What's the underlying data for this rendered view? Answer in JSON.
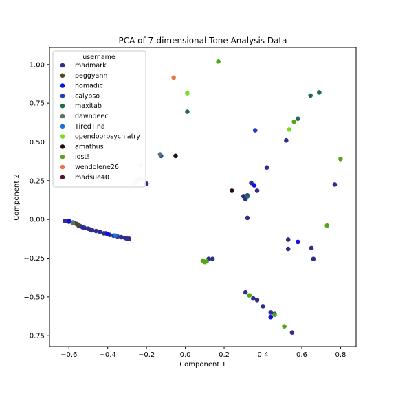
{
  "chart_data": {
    "type": "scatter",
    "title": "PCA of 7-dimensional Tone Analysis Data",
    "xlabel": "Component 1",
    "ylabel": "Component 2",
    "xlim": [
      -0.7,
      0.88
    ],
    "ylim": [
      -0.82,
      1.11
    ],
    "xticks": [
      -0.6,
      -0.4,
      -0.2,
      0.0,
      0.2,
      0.4,
      0.6,
      0.8
    ],
    "xtick_labels": [
      "−0.6",
      "−0.4",
      "−0.2",
      "0.0",
      "0.2",
      "0.4",
      "0.6",
      "0.8"
    ],
    "yticks": [
      -0.75,
      -0.5,
      -0.25,
      0.0,
      0.25,
      0.5,
      0.75,
      1.0
    ],
    "ytick_labels": [
      "−0.75",
      "−0.50",
      "−0.25",
      "0.00",
      "0.25",
      "0.50",
      "0.75",
      "1.00"
    ],
    "grid": false,
    "legend": {
      "title": "username",
      "placement": "top-left"
    },
    "series": [
      {
        "name": "madmark",
        "color": "#2e2e8c",
        "points": [
          [
            -0.62,
            -0.01
          ],
          [
            -0.6,
            -0.015
          ],
          [
            -0.58,
            -0.02
          ],
          [
            -0.56,
            -0.03
          ],
          [
            -0.55,
            -0.04
          ],
          [
            -0.54,
            -0.045
          ],
          [
            -0.53,
            -0.05
          ],
          [
            -0.52,
            -0.055
          ],
          [
            -0.5,
            -0.06
          ],
          [
            -0.49,
            -0.065
          ],
          [
            -0.48,
            -0.07
          ],
          [
            -0.46,
            -0.075
          ],
          [
            -0.44,
            -0.08
          ],
          [
            -0.42,
            -0.09
          ],
          [
            -0.41,
            -0.09
          ],
          [
            -0.39,
            -0.1
          ],
          [
            -0.37,
            -0.105
          ],
          [
            -0.35,
            -0.11
          ],
          [
            -0.33,
            -0.115
          ],
          [
            -0.31,
            -0.12
          ],
          [
            -0.3,
            -0.125
          ],
          [
            -0.29,
            -0.125
          ],
          [
            -0.41,
            0.275
          ],
          [
            -0.2,
            0.23
          ],
          [
            0.12,
            -0.255
          ],
          [
            0.14,
            -0.255
          ],
          [
            0.3,
            0.15
          ],
          [
            0.31,
            0.13
          ],
          [
            0.32,
            0.155
          ],
          [
            0.34,
            0.235
          ],
          [
            0.37,
            0.185
          ],
          [
            0.32,
            0.01
          ],
          [
            0.42,
            0.335
          ],
          [
            0.52,
            0.51
          ],
          [
            0.77,
            0.225
          ],
          [
            0.31,
            -0.47
          ],
          [
            0.35,
            -0.51
          ],
          [
            0.37,
            -0.52
          ],
          [
            0.4,
            -0.56
          ],
          [
            0.44,
            -0.6
          ],
          [
            0.46,
            -0.61
          ],
          [
            0.53,
            -0.13
          ],
          [
            0.53,
            -0.19
          ],
          [
            0.65,
            -0.185
          ],
          [
            0.66,
            -0.255
          ],
          [
            0.55,
            -0.73
          ]
        ]
      },
      {
        "name": "peggyann",
        "color": "#4d4d1f",
        "points": [
          [
            -0.57,
            -0.025
          ],
          [
            -0.55,
            -0.035
          ]
        ]
      },
      {
        "name": "nomadic",
        "color": "#1010e0",
        "points": [
          [
            -0.6,
            -0.01
          ],
          [
            -0.4,
            -0.095
          ],
          [
            0.355,
            0.22
          ],
          [
            0.58,
            -0.145
          ],
          [
            0.44,
            -0.63
          ]
        ]
      },
      {
        "name": "calypso",
        "color": "#1f3fbf",
        "points": [
          [
            -0.125,
            0.41
          ],
          [
            0.36,
            0.575
          ]
        ]
      },
      {
        "name": "maxitab",
        "color": "#1f6b55",
        "points": [
          [
            0.01,
            0.695
          ],
          [
            0.58,
            0.65
          ],
          [
            0.645,
            0.8
          ],
          [
            0.69,
            0.82
          ],
          [
            0.32,
            0.15
          ]
        ]
      },
      {
        "name": "dawndeec",
        "color": "#557766",
        "points": [
          [
            -0.13,
            0.42
          ],
          [
            -0.58,
            -0.025
          ]
        ]
      },
      {
        "name": "TiredTina",
        "color": "#1c6fd6",
        "points": [
          [
            -0.36,
            -0.105
          ]
        ]
      },
      {
        "name": "opendoorpsychiatry",
        "color": "#77dd22",
        "points": [
          [
            0.01,
            0.815
          ],
          [
            0.535,
            0.58
          ]
        ]
      },
      {
        "name": "amathus",
        "color": "#220f10",
        "points": [
          [
            -0.05,
            0.41
          ],
          [
            0.24,
            0.185
          ]
        ]
      },
      {
        "name": "lost!",
        "color": "#55a615",
        "points": [
          [
            0.17,
            1.02
          ],
          [
            0.56,
            0.63
          ],
          [
            0.8,
            0.39
          ],
          [
            0.73,
            -0.04
          ],
          [
            0.09,
            -0.265
          ],
          [
            0.1,
            -0.275
          ],
          [
            0.11,
            -0.27
          ],
          [
            0.33,
            -0.49
          ],
          [
            0.46,
            -0.615
          ],
          [
            0.51,
            -0.69
          ]
        ]
      },
      {
        "name": "wendolene26",
        "color": "#f07040",
        "points": [
          [
            -0.06,
            0.915
          ]
        ]
      },
      {
        "name": "madsue40",
        "color": "#5a0f2a",
        "points": []
      },
      {
        "name": "",
        "color": "#d0d8f5",
        "points": [
          [
            -0.26,
            0.235
          ],
          [
            -0.245,
            0.26
          ],
          [
            -0.225,
            0.26
          ],
          [
            -0.23,
            0.35
          ]
        ]
      }
    ]
  }
}
